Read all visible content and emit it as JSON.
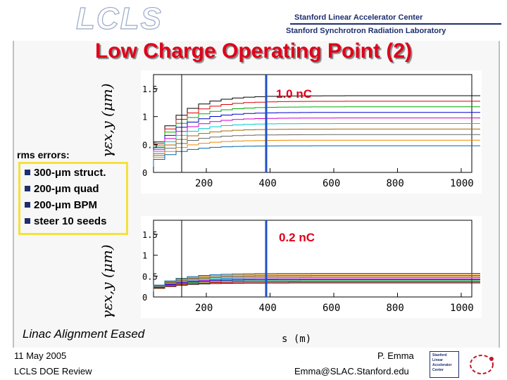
{
  "header": {
    "logo_text": "LCLS",
    "org_line1": "Stanford Linear Accelerator Center",
    "org_line2": "Stanford Synchrotron Radiation Laboratory"
  },
  "slide": {
    "title": "Low Charge Operating Point (2)",
    "caption": "Linac Alignment Eased",
    "rms": {
      "title": "rms errors:",
      "items": [
        "300-μm struct.",
        "200-μm quad",
        "200-μm BPM",
        "steer 10 seeds"
      ]
    },
    "plots": [
      {
        "charge_label": "1.0 nC",
        "y_label": "γεx,y (μm)",
        "y_ticks": [
          "1.5",
          "1",
          "0.5",
          "0"
        ],
        "x_ticks": [
          "200",
          "400",
          "600",
          "800",
          "1000"
        ]
      },
      {
        "charge_label": "0.2 nC",
        "y_label": "γεx,y (μm)",
        "y_ticks": [
          "1.5",
          "1",
          "0.5",
          "0"
        ],
        "x_ticks": [
          "200",
          "400",
          "600",
          "800",
          "1000"
        ],
        "x_unit": "s (m)"
      }
    ]
  },
  "footer": {
    "date": "11 May 2005",
    "event": "LCLS DOE Review",
    "author": "P. Emma",
    "email": "Emma@SLAC.Stanford.edu",
    "logo_lines": [
      "Stanford",
      "Linear",
      "Accelerator",
      "Center"
    ]
  },
  "colors": {
    "title": "#e0001a",
    "accent": "#1e2f6e",
    "box_border": "#f4e23a"
  }
}
